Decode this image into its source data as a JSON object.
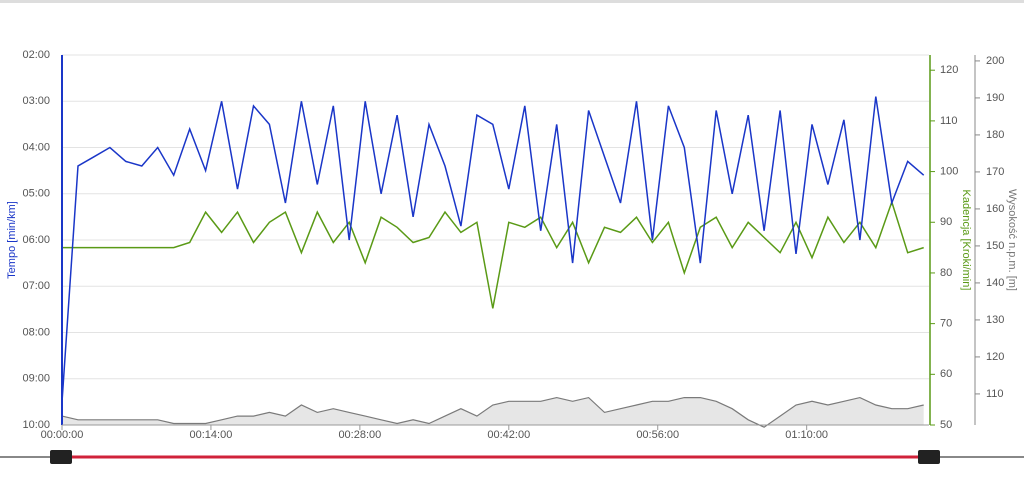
{
  "chart_data": {
    "type": "line",
    "x": [
      0,
      1.5,
      3,
      4.5,
      6,
      7.5,
      9,
      10.5,
      12,
      13.5,
      15,
      16.5,
      18,
      19.5,
      21,
      22.5,
      24,
      25.5,
      27,
      28.5,
      30,
      31.5,
      33,
      34.5,
      36,
      37.5,
      39,
      40.5,
      42,
      43.5,
      45,
      46.5,
      48,
      49.5,
      51,
      52.5,
      54,
      55.5,
      57,
      58.5,
      60,
      61.5,
      63,
      64.5,
      66,
      67.5,
      69,
      70.5,
      72,
      73.5,
      75,
      76.5,
      78,
      79.5,
      81
    ],
    "xlim": [
      0,
      81.5
    ],
    "xticks": [
      {
        "value": 0,
        "label": "00:00:00"
      },
      {
        "value": 14,
        "label": "00:14:00"
      },
      {
        "value": 28,
        "label": "00:28:00"
      },
      {
        "value": 42,
        "label": "00:42:00"
      },
      {
        "value": 56,
        "label": "00:56:00"
      },
      {
        "value": 70,
        "label": "01:10:00"
      }
    ],
    "y_label": "Tempo [min/km]",
    "ylim": [
      10,
      2
    ],
    "yticks": [
      {
        "value": 2,
        "label": "02:00"
      },
      {
        "value": 3,
        "label": "03:00"
      },
      {
        "value": 4,
        "label": "04:00"
      },
      {
        "value": 5,
        "label": "05:00"
      },
      {
        "value": 6,
        "label": "06:00"
      },
      {
        "value": 7,
        "label": "07:00"
      },
      {
        "value": 8,
        "label": "08:00"
      },
      {
        "value": 9,
        "label": "09:00"
      },
      {
        "value": 10,
        "label": "10:00"
      }
    ],
    "y2_label": "Kadencja [Kroki/min]",
    "y2lim": [
      50,
      123
    ],
    "y2ticks": [
      50,
      60,
      70,
      80,
      90,
      100,
      110,
      120
    ],
    "y3_label": "Wysokość n.p.m. [m]",
    "y3lim": [
      101.6,
      201.6
    ],
    "y3ticks": [
      110,
      120,
      130,
      140,
      150,
      160,
      170,
      180,
      190,
      200
    ],
    "grid": true,
    "series": [
      {
        "name": "Tempo",
        "axis": "y",
        "color": "#1a36c8",
        "values": [
          9.5,
          4.4,
          4.2,
          4.0,
          4.3,
          4.4,
          4.0,
          4.6,
          3.6,
          4.5,
          3.0,
          4.9,
          3.1,
          3.5,
          5.2,
          3.0,
          4.8,
          3.1,
          6.0,
          3.0,
          5.0,
          3.3,
          5.5,
          3.5,
          4.4,
          5.7,
          3.3,
          3.5,
          4.9,
          3.1,
          5.8,
          3.5,
          6.5,
          3.2,
          4.2,
          5.2,
          3.0,
          6.0,
          3.1,
          4.0,
          6.5,
          3.2,
          5.0,
          3.3,
          5.8,
          3.2,
          6.3,
          3.5,
          4.8,
          3.4,
          6.0,
          2.9,
          5.2,
          4.3,
          4.6
        ]
      },
      {
        "name": "Kadencja",
        "axis": "y2",
        "color": "#5a9a16",
        "values": [
          85,
          85,
          85,
          85,
          85,
          85,
          85,
          85,
          86,
          92,
          88,
          92,
          86,
          90,
          92,
          84,
          92,
          86,
          90,
          82,
          91,
          89,
          86,
          87,
          92,
          88,
          90,
          73,
          90,
          89,
          91,
          85,
          90,
          82,
          89,
          88,
          91,
          86,
          90,
          80,
          89,
          91,
          85,
          90,
          87,
          84,
          90,
          83,
          91,
          86,
          90,
          85,
          94,
          84,
          85
        ]
      },
      {
        "name": "Wysokość",
        "axis": "y3",
        "color": "#7a7a7a",
        "values": [
          104,
          103,
          103,
          103,
          103,
          103,
          103,
          102,
          102,
          102,
          103,
          104,
          104,
          105,
          104,
          107,
          105,
          106,
          105,
          104,
          103,
          102,
          103,
          102,
          104,
          106,
          104,
          107,
          108,
          108,
          108,
          109,
          108,
          109,
          105,
          106,
          107,
          108,
          108,
          109,
          109,
          108,
          106,
          103,
          101,
          104,
          107,
          108,
          107,
          108,
          109,
          107,
          106,
          106,
          107
        ]
      }
    ]
  }
}
